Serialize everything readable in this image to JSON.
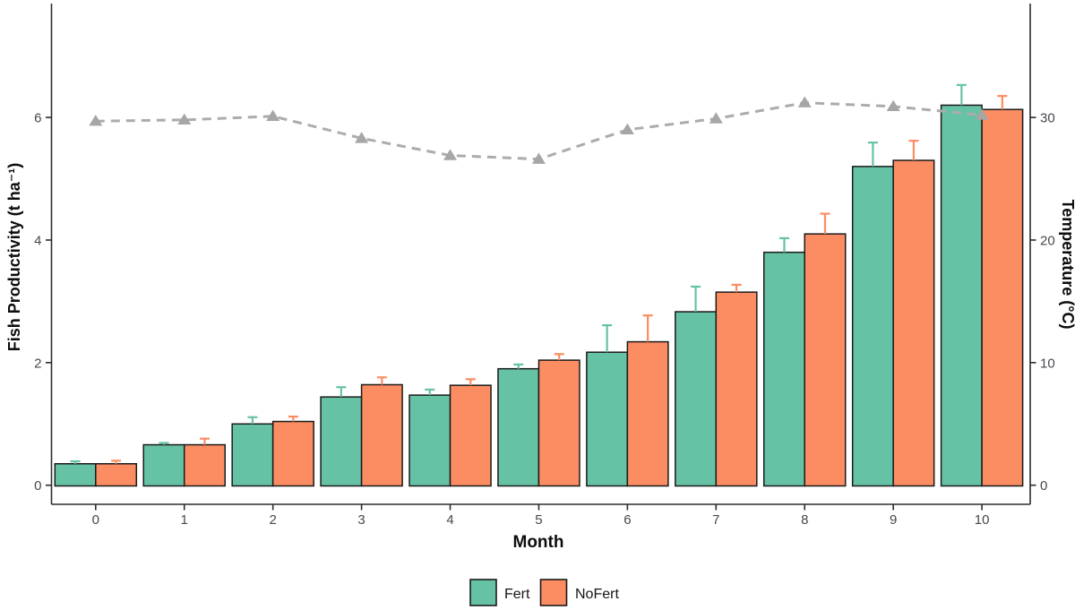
{
  "chart_data": {
    "type": "bar",
    "subtype": "grouped-bars-with-secondary-axis-line",
    "title": "",
    "categories": [
      "0",
      "1",
      "2",
      "3",
      "4",
      "5",
      "6",
      "7",
      "8",
      "9",
      "10"
    ],
    "series": [
      {
        "name": "Fert",
        "kind": "bar",
        "axis": "left",
        "color": "#66C2A5",
        "values": [
          0.35,
          0.66,
          1.0,
          1.44,
          1.47,
          1.9,
          2.17,
          2.83,
          3.8,
          5.2,
          6.2
        ],
        "errors_plus": [
          0.04,
          0.03,
          0.11,
          0.16,
          0.09,
          0.07,
          0.44,
          0.41,
          0.23,
          0.39,
          0.33
        ]
      },
      {
        "name": "NoFert",
        "kind": "bar",
        "axis": "left",
        "color": "#FC8D62",
        "values": [
          0.35,
          0.66,
          1.04,
          1.64,
          1.63,
          2.04,
          2.34,
          3.15,
          4.1,
          5.3,
          6.13
        ],
        "errors_plus": [
          0.05,
          0.1,
          0.08,
          0.12,
          0.1,
          0.1,
          0.43,
          0.12,
          0.33,
          0.32,
          0.22
        ]
      },
      {
        "name": "Temperature",
        "kind": "line",
        "axis": "right",
        "color": "#ACACAC",
        "marker_color": "#A6A6A6",
        "linestyle": "dashed",
        "marker": "triangle-up",
        "values": [
          29.7,
          29.8,
          30.1,
          28.3,
          26.9,
          26.6,
          29.0,
          29.9,
          31.2,
          30.9,
          30.2
        ]
      }
    ],
    "xlabel": "Month",
    "ylabel_left": "Fish Productivity (t ha⁻¹)",
    "ylabel_right": "Temperature (°C)",
    "ylim_left": [
      0,
      7.85
    ],
    "ylim_right": [
      0,
      39.3
    ],
    "yticks_left": [
      "0",
      "2",
      "4",
      "6"
    ],
    "yticks_right": [
      "0",
      "10",
      "20",
      "30"
    ],
    "grid": false,
    "legend": {
      "position": "bottom-center",
      "entries": [
        "Fert",
        "NoFert"
      ]
    },
    "style": {
      "bar_border_color": "#1a1a1a",
      "axis_line_color": "#2b2b2b",
      "tick_text_color": "#47474f",
      "background": "#ffffff"
    }
  }
}
